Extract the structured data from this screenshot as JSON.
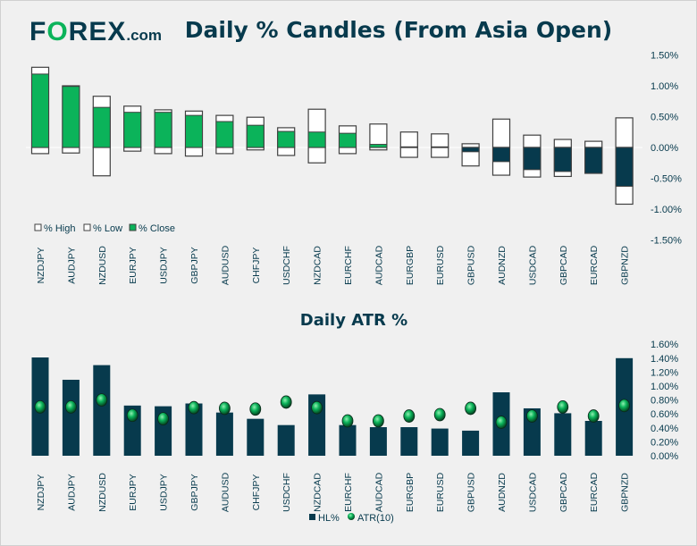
{
  "logo": {
    "main": "FOREX",
    "suffix": ".com"
  },
  "chart_data": [
    {
      "type": "bar",
      "title": "Daily % Candles (From Asia Open)",
      "categories": [
        "NZDJPY",
        "AUDJPY",
        "NZDUSD",
        "EURJPY",
        "USDJPY",
        "GBPJPY",
        "AUDUSD",
        "CHFJPY",
        "USDCHF",
        "NZDCAD",
        "EURCHF",
        "AUDCAD",
        "EURGBP",
        "EURUSD",
        "GBPUSD",
        "AUDNZD",
        "USDCAD",
        "GBPCAD",
        "EURCAD",
        "GBPNZD"
      ],
      "series": [
        {
          "name": "% High",
          "values": [
            1.3,
            1.0,
            0.83,
            0.67,
            0.61,
            0.59,
            0.52,
            0.49,
            0.32,
            0.62,
            0.35,
            0.38,
            0.25,
            0.22,
            0.06,
            0.46,
            0.2,
            0.13,
            0.1,
            0.48
          ]
        },
        {
          "name": "% Low",
          "values": [
            -0.1,
            -0.09,
            -0.46,
            -0.06,
            -0.1,
            -0.14,
            -0.1,
            -0.04,
            -0.13,
            -0.25,
            -0.1,
            -0.04,
            -0.16,
            -0.16,
            -0.3,
            -0.45,
            -0.48,
            -0.47,
            -0.42,
            -0.92
          ]
        },
        {
          "name": "% Close",
          "values": [
            1.19,
            0.99,
            0.65,
            0.57,
            0.57,
            0.52,
            0.42,
            0.36,
            0.26,
            0.25,
            0.23,
            0.05,
            0.01,
            0.01,
            -0.07,
            -0.23,
            -0.36,
            -0.39,
            -0.42,
            -0.63
          ]
        }
      ],
      "ylim": [
        -1.5,
        1.5
      ],
      "yticks": [
        "1.50%",
        "1.00%",
        "0.50%",
        "0.00%",
        "-0.50%",
        "-1.00%",
        "-1.50%"
      ],
      "legend": "bottom-left",
      "colors": {
        "up": "#0bb35a",
        "down": "#073a4d",
        "range": "#ffffff"
      }
    },
    {
      "type": "bar",
      "title": "Daily ATR %",
      "categories": [
        "NZDJPY",
        "AUDJPY",
        "NZDUSD",
        "EURJPY",
        "USDJPY",
        "GBPJPY",
        "AUDUSD",
        "CHFJPY",
        "USDCHF",
        "NZDCAD",
        "EURCHF",
        "AUDCAD",
        "EURGBP",
        "EURUSD",
        "GBPUSD",
        "AUDNZD",
        "USDCAD",
        "GBPCAD",
        "EURCAD",
        "GBPNZD"
      ],
      "series": [
        {
          "name": "HL%",
          "values": [
            1.41,
            1.09,
            1.3,
            0.72,
            0.71,
            0.75,
            0.62,
            0.53,
            0.44,
            0.88,
            0.44,
            0.41,
            0.41,
            0.39,
            0.36,
            0.91,
            0.68,
            0.61,
            0.5,
            1.4
          ]
        },
        {
          "name": "ATR(10)",
          "values": [
            0.7,
            0.7,
            0.8,
            0.58,
            0.53,
            0.69,
            0.68,
            0.67,
            0.77,
            0.69,
            0.5,
            0.5,
            0.57,
            0.59,
            0.68,
            0.48,
            0.57,
            0.7,
            0.57,
            0.72
          ]
        }
      ],
      "ylim": [
        0,
        1.6
      ],
      "yticks": [
        "1.60%",
        "1.40%",
        "1.20%",
        "1.00%",
        "0.80%",
        "0.60%",
        "0.40%",
        "0.20%",
        "0.00%"
      ],
      "legend": "bottom"
    }
  ]
}
